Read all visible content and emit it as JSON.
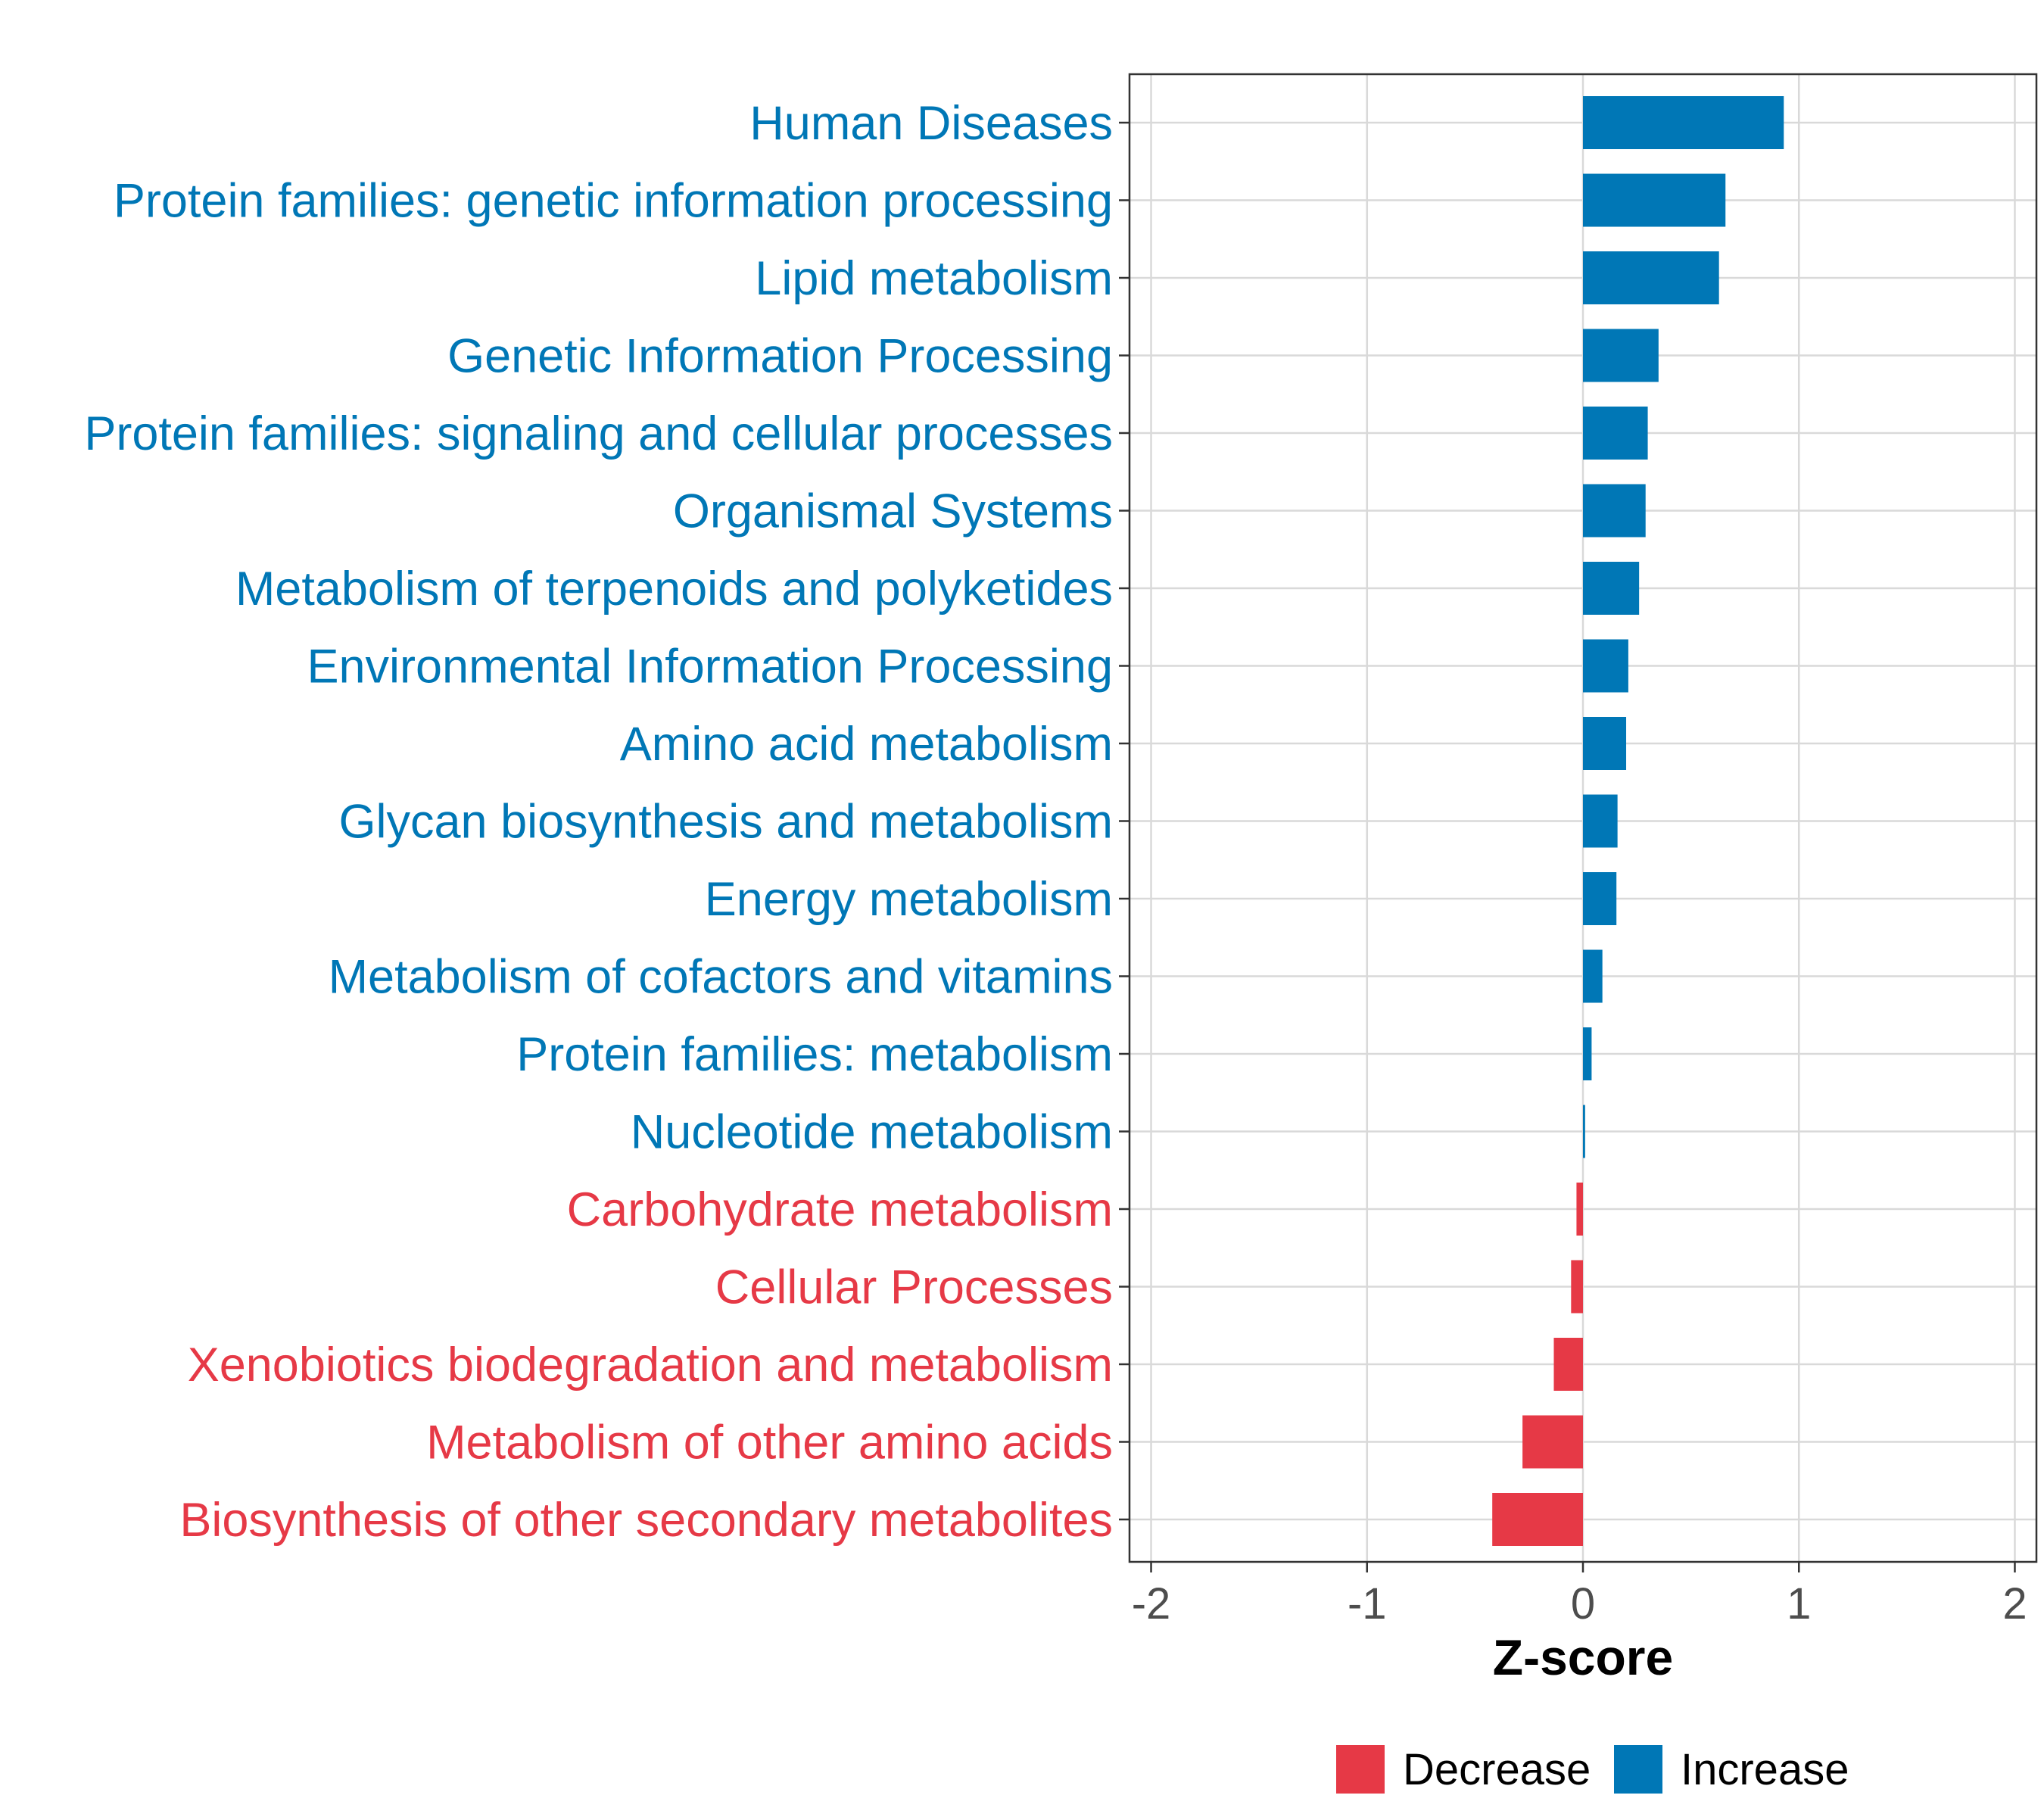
{
  "chart_data": {
    "type": "bar",
    "orientation": "horizontal",
    "categories": [
      "Human Diseases",
      "Protein families: genetic information processing",
      "Lipid metabolism",
      "Genetic Information Processing",
      "Protein families: signaling and cellular processes",
      "Organismal Systems",
      "Metabolism of terpenoids and polyketides",
      "Environmental Information Processing",
      "Amino acid metabolism",
      "Glycan biosynthesis and metabolism",
      "Energy metabolism",
      "Metabolism of cofactors and vitamins",
      "Protein families: metabolism",
      "Nucleotide metabolism",
      "Carbohydrate metabolism",
      "Cellular Processes",
      "Xenobiotics biodegradation and metabolism",
      "Metabolism of other amino acids",
      "Biosynthesis of other secondary metabolites"
    ],
    "values": [
      0.93,
      0.66,
      0.63,
      0.35,
      0.3,
      0.29,
      0.26,
      0.21,
      0.2,
      0.16,
      0.155,
      0.09,
      0.04,
      0.01,
      -0.03,
      -0.055,
      -0.135,
      -0.28,
      -0.42
    ],
    "xlabel": "Z-score",
    "ylabel": "",
    "xlim": [
      -2.1,
      2.1
    ],
    "xticks": [
      -2,
      -1,
      0,
      1,
      2
    ],
    "xtick_labels": [
      "-2",
      "-1",
      "0",
      "1",
      "2"
    ],
    "grid": true,
    "legend": {
      "position": "bottom",
      "entries": [
        {
          "label": "Decrease",
          "color": "#E63946"
        },
        {
          "label": "Increase",
          "color": "#0077B6"
        }
      ]
    },
    "colors": {
      "decrease": "#E63946",
      "increase": "#0077B6"
    }
  }
}
